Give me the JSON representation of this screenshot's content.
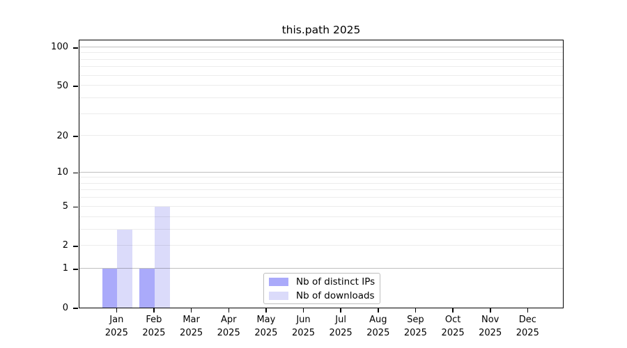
{
  "chart_data": {
    "type": "bar",
    "title": "this.path 2025",
    "categories": [
      "Jan",
      "Feb",
      "Mar",
      "Apr",
      "May",
      "Jun",
      "Jul",
      "Aug",
      "Sep",
      "Oct",
      "Nov",
      "Dec"
    ],
    "x_sub_label": "2025",
    "series": [
      {
        "name": "Nb of distinct IPs",
        "color": "#aaaafa",
        "values": [
          1,
          1,
          0,
          0,
          0,
          0,
          0,
          0,
          0,
          0,
          0,
          0
        ]
      },
      {
        "name": "Nb of downloads",
        "color": "#dbdbfa",
        "values": [
          3,
          5,
          0,
          0,
          0,
          0,
          0,
          0,
          0,
          0,
          0,
          0
        ]
      }
    ],
    "yscale": "log1p",
    "ylim": [
      0,
      115
    ],
    "y_ticks": [
      0,
      1,
      2,
      5,
      10,
      20,
      50,
      100
    ],
    "gridlines_major": [
      1,
      10,
      100
    ],
    "gridlines_minor": [
      2,
      3,
      4,
      5,
      6,
      7,
      8,
      9,
      20,
      30,
      40,
      50,
      60,
      70,
      80,
      90
    ],
    "grid": true,
    "legend_position": "bottom-center",
    "xlabel": "",
    "ylabel": ""
  }
}
